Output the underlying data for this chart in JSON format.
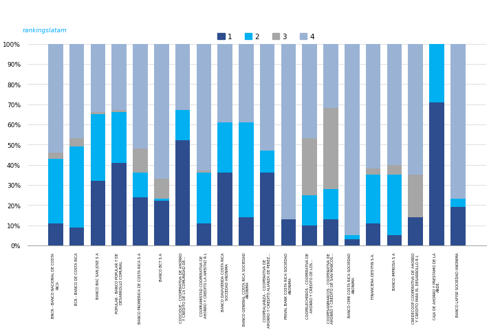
{
  "categories": [
    "BNCR - BANCO NACIONAL DE COSTA\nRICA",
    "BCR - BANCO DE COSTA RICA",
    "BANCO BAC SAN JOSE S A",
    "POPULAR - BANCO POPULAR Y DE\nDESARROLLO COMUNAL",
    "BANCO PROMERICA DE COSTA RICA S A",
    "BANCO BCT S A",
    "COOCIQUE - COOPERATIVA DE AHORRO\nY CREDITO DE LA COMUNIDAD DE...",
    "COOPEAMISTAD COOPERATIVA DE\nAHORRO Y CREDITO LA AMISTAD R L",
    "BANCO DAVIVIENDA COSTA RICA\nSOCIEDAD ANONIMA",
    "BANCO GENERAL COSTA RICA SOCIEDAD\nANONIMA",
    "COOPEALIANZA - COOPERATIVA DE\nAHORRO Y CREDITO ALIANZA DE PEREZ...",
    "PRIVAL BANK COSTA RICA SOCIEDAD\nANONIMA",
    "COOPELECHEROS - COOPERATIVA DE\nAHORRO Y CREDITO DE LOS...",
    "COOPESANMARCOS - COOPERATIVA DE\nAHORRO Y CREDITO DE SAN MARCOS...",
    "BANCO CMB COSTA RICA SOCIEDAD\nANONIMA",
    "FINANCIERA DESYFIN S.A.",
    "BANCO IMPROSA S A",
    "CREDECOOP COOPERATIVA DE AHORRO\nY CREDITO PARA EL DESARROLLO R L",
    "CAJA DE AHORRO Y PRESTAMO DE LA\nANDE.",
    "BANCO LAFISE SOCIEDAD ANONIMA"
  ],
  "series1": [
    11,
    9,
    32,
    41,
    24,
    22,
    52,
    11,
    36,
    14,
    36,
    13,
    10,
    13,
    3,
    11,
    5,
    14,
    71,
    19
  ],
  "series2": [
    32,
    40,
    33,
    25,
    12,
    1,
    15,
    25,
    25,
    47,
    11,
    0,
    15,
    15,
    2,
    24,
    30,
    0,
    29,
    4
  ],
  "series3": [
    3,
    4,
    1,
    1,
    12,
    10,
    0,
    1,
    0,
    0,
    0,
    0,
    28,
    40,
    0,
    3,
    5,
    21,
    0,
    0
  ],
  "series4": [
    54,
    47,
    34,
    33,
    52,
    67,
    33,
    63,
    39,
    39,
    53,
    87,
    47,
    32,
    95,
    62,
    60,
    65,
    0,
    77
  ],
  "colors": [
    "#2e4d8e",
    "#00b0f0",
    "#a6a6a6",
    "#9ab3d5"
  ],
  "legend_labels": [
    "1",
    "2",
    "3",
    "4"
  ],
  "watermark": "rankingslatam",
  "ylim": [
    0,
    100
  ],
  "ytick_labels": [
    "0%",
    "10%",
    "20%",
    "30%",
    "40%",
    "50%",
    "60%",
    "70%",
    "80%",
    "90%",
    "100%"
  ],
  "bg_color": "#ffffff",
  "grid_color": "#d0d0d0"
}
